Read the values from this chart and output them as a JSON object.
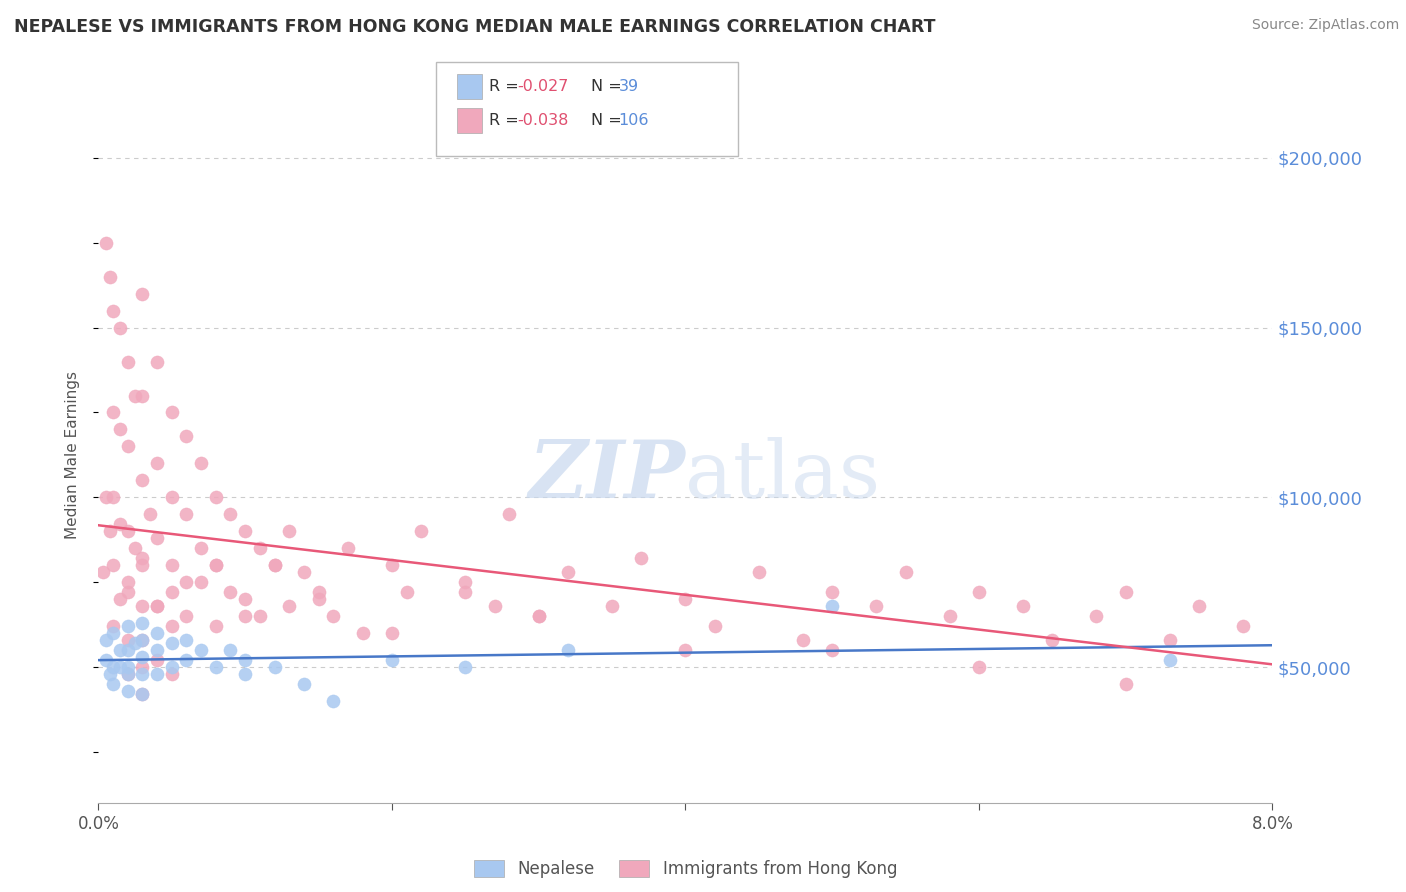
{
  "title": "NEPALESE VS IMMIGRANTS FROM HONG KONG MEDIAN MALE EARNINGS CORRELATION CHART",
  "source": "Source: ZipAtlas.com",
  "ylabel": "Median Male Earnings",
  "xmin": 0.0,
  "xmax": 0.08,
  "ymin": 10000,
  "ymax": 215000,
  "yticks": [
    50000,
    100000,
    150000,
    200000
  ],
  "ytick_labels": [
    "$50,000",
    "$100,000",
    "$150,000",
    "$200,000"
  ],
  "background_color": "#ffffff",
  "grid_color": "#cccccc",
  "legend_r1_val": "-0.027",
  "legend_n1_val": "39",
  "legend_r2_val": "-0.038",
  "legend_n2_val": "106",
  "color_nepalese": "#a8c8f0",
  "color_hk": "#f0a8bc",
  "trend_color_nepalese": "#4878c8",
  "trend_color_hk": "#e85878",
  "nepalese_x": [
    0.0005,
    0.0005,
    0.0008,
    0.001,
    0.001,
    0.001,
    0.0015,
    0.0015,
    0.002,
    0.002,
    0.002,
    0.002,
    0.002,
    0.0025,
    0.003,
    0.003,
    0.003,
    0.003,
    0.003,
    0.004,
    0.004,
    0.004,
    0.005,
    0.005,
    0.006,
    0.006,
    0.007,
    0.008,
    0.009,
    0.01,
    0.01,
    0.012,
    0.014,
    0.016,
    0.02,
    0.025,
    0.032,
    0.05,
    0.073
  ],
  "nepalese_y": [
    58000,
    52000,
    48000,
    60000,
    50000,
    45000,
    55000,
    50000,
    62000,
    55000,
    50000,
    48000,
    43000,
    57000,
    63000,
    58000,
    53000,
    48000,
    42000,
    60000,
    55000,
    48000,
    57000,
    50000,
    58000,
    52000,
    55000,
    50000,
    55000,
    52000,
    48000,
    50000,
    45000,
    40000,
    52000,
    50000,
    55000,
    68000,
    52000
  ],
  "hk_x": [
    0.0003,
    0.0005,
    0.0005,
    0.0008,
    0.0008,
    0.001,
    0.001,
    0.001,
    0.001,
    0.001,
    0.0015,
    0.0015,
    0.0015,
    0.0015,
    0.002,
    0.002,
    0.002,
    0.002,
    0.002,
    0.002,
    0.0025,
    0.0025,
    0.003,
    0.003,
    0.003,
    0.003,
    0.003,
    0.003,
    0.003,
    0.003,
    0.0035,
    0.004,
    0.004,
    0.004,
    0.004,
    0.004,
    0.005,
    0.005,
    0.005,
    0.005,
    0.005,
    0.006,
    0.006,
    0.006,
    0.007,
    0.007,
    0.008,
    0.008,
    0.008,
    0.009,
    0.009,
    0.01,
    0.01,
    0.011,
    0.011,
    0.012,
    0.013,
    0.013,
    0.014,
    0.015,
    0.016,
    0.017,
    0.018,
    0.02,
    0.021,
    0.022,
    0.025,
    0.027,
    0.028,
    0.03,
    0.032,
    0.035,
    0.037,
    0.04,
    0.042,
    0.045,
    0.048,
    0.05,
    0.053,
    0.055,
    0.058,
    0.06,
    0.063,
    0.065,
    0.068,
    0.07,
    0.073,
    0.075,
    0.078,
    0.002,
    0.003,
    0.004,
    0.005,
    0.006,
    0.007,
    0.008,
    0.01,
    0.012,
    0.015,
    0.02,
    0.025,
    0.03,
    0.04,
    0.05,
    0.06,
    0.07
  ],
  "hk_y": [
    78000,
    175000,
    100000,
    165000,
    90000,
    155000,
    125000,
    100000,
    80000,
    62000,
    150000,
    120000,
    92000,
    70000,
    140000,
    115000,
    90000,
    72000,
    58000,
    48000,
    130000,
    85000,
    160000,
    130000,
    105000,
    82000,
    68000,
    58000,
    50000,
    42000,
    95000,
    140000,
    110000,
    88000,
    68000,
    52000,
    125000,
    100000,
    80000,
    62000,
    48000,
    118000,
    95000,
    75000,
    110000,
    85000,
    100000,
    80000,
    62000,
    95000,
    72000,
    90000,
    70000,
    85000,
    65000,
    80000,
    90000,
    68000,
    78000,
    72000,
    65000,
    85000,
    60000,
    80000,
    72000,
    90000,
    75000,
    68000,
    95000,
    65000,
    78000,
    68000,
    82000,
    70000,
    62000,
    78000,
    58000,
    72000,
    68000,
    78000,
    65000,
    72000,
    68000,
    58000,
    65000,
    72000,
    58000,
    68000,
    62000,
    75000,
    80000,
    68000,
    72000,
    65000,
    75000,
    80000,
    65000,
    80000,
    70000,
    60000,
    72000,
    65000,
    55000,
    55000,
    50000,
    45000
  ]
}
